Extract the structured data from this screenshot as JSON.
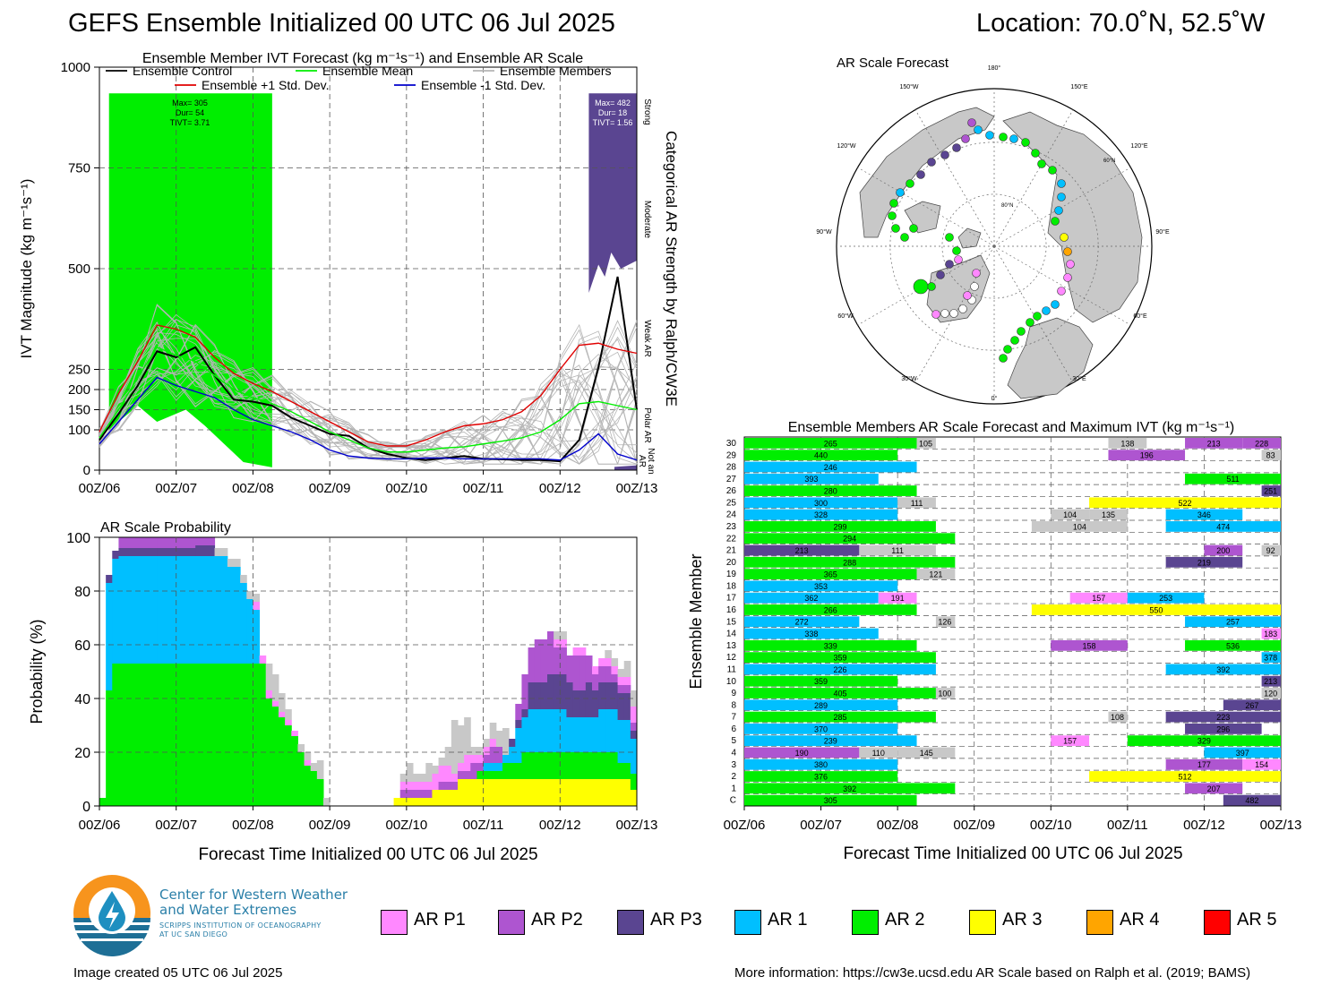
{
  "header": {
    "title": "GEFS Ensemble Initialized 00 UTC 06 Jul 2025",
    "location": "Location: 70.0˚N, 52.5˚W"
  },
  "colors": {
    "AR P1": "#ff88ff",
    "AR P2": "#ae55d0",
    "AR P3": "#5a4591",
    "AR 1": "#00bfff",
    "AR 2": "#00ee00",
    "AR 3": "#ffff00",
    "AR 4": "#ffa500",
    "AR 5": "#ff0000",
    "none": "#c8c8c8"
  },
  "time_ticks": [
    "00Z/06",
    "00Z/07",
    "00Z/08",
    "00Z/09",
    "00Z/10",
    "00Z/11",
    "00Z/12",
    "00Z/13"
  ],
  "chart_data": [
    {
      "type": "line",
      "title": "Ensemble Member IVT Forecast (kg m⁻¹s⁻¹) and Ensemble AR Scale",
      "ylabel": "IVT Magnitude (kg m⁻¹s⁻¹)",
      "ylim": [
        0,
        1000
      ],
      "yticks": [
        0,
        100,
        150,
        200,
        250,
        500,
        750,
        1000
      ],
      "xlim": [
        0,
        168
      ],
      "right_axis_title": "Categorical AR Strength by Ralph/CW3E",
      "right_labels": [
        "Strong",
        "Moderate",
        "Weak AR",
        "Polar AR",
        "Not an AR"
      ],
      "legend": [
        "Ensemble Control",
        "Ensemble Mean",
        "Ensemble Members",
        "Ensemble +1 Std. Dev.",
        "Ensemble -1 Std. Dev."
      ],
      "annotations": [
        {
          "lines": [
            "Max= 305",
            "Dur= 54",
            "TIVT= 3.71"
          ]
        },
        {
          "lines": [
            "Max= 482",
            "Dur= 18",
            "TIVT= 1.56"
          ]
        }
      ],
      "x_hours": [
        0,
        6,
        12,
        18,
        24,
        30,
        36,
        42,
        48,
        54,
        60,
        66,
        72,
        78,
        84,
        90,
        96,
        102,
        108,
        114,
        120,
        126,
        132,
        138,
        144,
        150,
        156,
        162,
        168
      ],
      "series": [
        {
          "name": "Ensemble Control",
          "values": [
            75,
            140,
            210,
            295,
            280,
            305,
            235,
            175,
            170,
            160,
            130,
            110,
            90,
            85,
            55,
            40,
            30,
            25,
            30,
            35,
            28,
            27,
            25,
            25,
            22,
            75,
            255,
            480,
            150
          ]
        },
        {
          "name": "Ensemble Mean",
          "values": [
            80,
            150,
            230,
            305,
            285,
            270,
            235,
            200,
            180,
            165,
            145,
            120,
            95,
            75,
            55,
            45,
            45,
            50,
            55,
            58,
            65,
            72,
            80,
            95,
            125,
            165,
            170,
            160,
            150
          ]
        },
        {
          "name": "Ensemble +1 Std. Dev.",
          "values": [
            95,
            190,
            270,
            360,
            350,
            330,
            280,
            240,
            215,
            195,
            170,
            145,
            120,
            95,
            70,
            60,
            60,
            75,
            95,
            110,
            115,
            125,
            145,
            185,
            250,
            310,
            315,
            300,
            290
          ]
        },
        {
          "name": "Ensemble -1 Std. Dev.",
          "values": [
            65,
            120,
            175,
            230,
            210,
            195,
            180,
            150,
            125,
            110,
            95,
            75,
            50,
            35,
            30,
            28,
            28,
            30,
            30,
            28,
            28,
            28,
            28,
            28,
            25,
            50,
            90,
            40,
            25
          ]
        }
      ]
    },
    {
      "type": "area",
      "title": "AR Scale Probability",
      "ylabel": "Probability (%)",
      "xlabel": "Forecast Time Initialized 00 UTC 06 Jul 2025",
      "ylim": [
        0,
        100
      ]
    },
    {
      "type": "bar",
      "title": "Ensemble Members AR Scale Forecast and Maximum IVT (kg m⁻¹s⁻¹)",
      "ylabel": "Ensemble Member",
      "xlabel": "Forecast Time Initialized 00 UTC 06 Jul 2025",
      "members": [
        "30",
        "29",
        "28",
        "27",
        "26",
        "25",
        "24",
        "23",
        "22",
        "21",
        "20",
        "19",
        "18",
        "17",
        "16",
        "15",
        "14",
        "13",
        "12",
        "11",
        "10",
        "9",
        "8",
        "7",
        "6",
        "5",
        "4",
        "3",
        "2",
        "1",
        "C"
      ],
      "events": [
        [
          "30",
          0,
          54,
          "AR 2",
          "265"
        ],
        [
          "30",
          54,
          60,
          "none",
          "105"
        ],
        [
          "30",
          114,
          126,
          "none",
          "138"
        ],
        [
          "30",
          138,
          156,
          "AR P2",
          "213"
        ],
        [
          "30",
          156,
          168,
          "AR P2",
          "228"
        ],
        [
          "29",
          0,
          48,
          "AR 2",
          "440"
        ],
        [
          "29",
          114,
          138,
          "AR P2",
          "196"
        ],
        [
          "29",
          162,
          168,
          "none",
          "83"
        ],
        [
          "28",
          0,
          54,
          "AR 1",
          "246"
        ],
        [
          "27",
          0,
          42,
          "AR 1",
          "393"
        ],
        [
          "27",
          138,
          168,
          "AR 2",
          "511"
        ],
        [
          "26",
          0,
          54,
          "AR 2",
          "280"
        ],
        [
          "26",
          162,
          168,
          "AR P3",
          "251"
        ],
        [
          "25",
          0,
          48,
          "AR 1",
          "300"
        ],
        [
          "25",
          48,
          60,
          "none",
          "111"
        ],
        [
          "25",
          108,
          168,
          "AR 3",
          "522"
        ],
        [
          "24",
          0,
          48,
          "AR 1",
          "328"
        ],
        [
          "24",
          96,
          108,
          "none",
          "104"
        ],
        [
          "24",
          108,
          120,
          "none",
          "135"
        ],
        [
          "24",
          132,
          156,
          "AR 1",
          "346"
        ],
        [
          "23",
          0,
          60,
          "AR 2",
          "299"
        ],
        [
          "23",
          90,
          120,
          "none",
          "104"
        ],
        [
          "23",
          132,
          168,
          "AR 1",
          "474"
        ],
        [
          "22",
          0,
          66,
          "AR 2",
          "294"
        ],
        [
          "21",
          0,
          36,
          "AR P3",
          "213"
        ],
        [
          "21",
          36,
          60,
          "none",
          "111"
        ],
        [
          "21",
          144,
          156,
          "AR P2",
          "200"
        ],
        [
          "21",
          162,
          168,
          "none",
          "92"
        ],
        [
          "20",
          0,
          66,
          "AR 2",
          "288"
        ],
        [
          "20",
          132,
          156,
          "AR P3",
          "219"
        ],
        [
          "19",
          0,
          54,
          "AR 2",
          "365"
        ],
        [
          "19",
          54,
          66,
          "none",
          "121"
        ],
        [
          "18",
          0,
          48,
          "AR 1",
          "353"
        ],
        [
          "17",
          0,
          42,
          "AR 1",
          "362"
        ],
        [
          "17",
          42,
          54,
          "AR P1",
          "191"
        ],
        [
          "17",
          102,
          120,
          "AR P1",
          "157"
        ],
        [
          "17",
          120,
          144,
          "AR 1",
          "253"
        ],
        [
          "16",
          0,
          54,
          "AR 2",
          "266"
        ],
        [
          "16",
          90,
          168,
          "AR 3",
          "550"
        ],
        [
          "15",
          0,
          36,
          "AR 1",
          "272"
        ],
        [
          "15",
          60,
          66,
          "none",
          "126"
        ],
        [
          "15",
          138,
          168,
          "AR 1",
          "257"
        ],
        [
          "14",
          0,
          42,
          "AR 1",
          "338"
        ],
        [
          "14",
          162,
          168,
          "AR P1",
          "183"
        ],
        [
          "13",
          0,
          54,
          "AR 2",
          "339"
        ],
        [
          "13",
          96,
          120,
          "AR P2",
          "158"
        ],
        [
          "13",
          138,
          168,
          "AR 2",
          "536"
        ],
        [
          "12",
          0,
          60,
          "AR 2",
          "359"
        ],
        [
          "12",
          162,
          168,
          "AR 1",
          "378"
        ],
        [
          "11",
          0,
          60,
          "AR 1",
          "226"
        ],
        [
          "11",
          132,
          168,
          "AR 1",
          "392"
        ],
        [
          "10",
          0,
          48,
          "AR 2",
          "359"
        ],
        [
          "10",
          162,
          168,
          "AR P3",
          "213"
        ],
        [
          "9",
          0,
          60,
          "AR 2",
          "405"
        ],
        [
          "9",
          60,
          66,
          "none",
          "100"
        ],
        [
          "9",
          162,
          168,
          "none",
          "120"
        ],
        [
          "8",
          0,
          48,
          "AR 1",
          "289"
        ],
        [
          "8",
          150,
          168,
          "AR P3",
          "267"
        ],
        [
          "7",
          0,
          60,
          "AR 2",
          "285"
        ],
        [
          "7",
          114,
          120,
          "none",
          "108"
        ],
        [
          "7",
          132,
          168,
          "AR P3",
          "223"
        ],
        [
          "6",
          0,
          48,
          "AR 1",
          "370"
        ],
        [
          "6",
          138,
          162,
          "AR P3",
          "296"
        ],
        [
          "5",
          0,
          54,
          "AR 1",
          "239"
        ],
        [
          "5",
          96,
          108,
          "AR P1",
          "157"
        ],
        [
          "5",
          120,
          168,
          "AR 2",
          "329"
        ],
        [
          "4",
          0,
          36,
          "AR P2",
          "190"
        ],
        [
          "4",
          36,
          48,
          "none",
          "110"
        ],
        [
          "4",
          48,
          66,
          "none",
          "145"
        ],
        [
          "4",
          144,
          168,
          "AR 1",
          "397"
        ],
        [
          "3",
          0,
          48,
          "AR 1",
          "380"
        ],
        [
          "3",
          132,
          156,
          "AR P2",
          "177"
        ],
        [
          "3",
          156,
          168,
          "AR P1",
          "154"
        ],
        [
          "2",
          0,
          48,
          "AR 2",
          "376"
        ],
        [
          "2",
          108,
          168,
          "AR 3",
          "512"
        ],
        [
          "1",
          0,
          66,
          "AR 2",
          "392"
        ],
        [
          "1",
          138,
          156,
          "AR P2",
          "207"
        ],
        [
          "C",
          0,
          54,
          "AR 2",
          "305"
        ],
        [
          "C",
          150,
          168,
          "AR P3",
          "482"
        ]
      ]
    }
  ],
  "map": {
    "title": "AR Scale Forecast",
    "labels": [
      "180°",
      "150°E",
      "120°E",
      "90°E",
      "60°E",
      "30°E",
      "0°",
      "30°W",
      "60°W",
      "90°W",
      "120°W",
      "150°W",
      "80°N",
      "60°N"
    ]
  },
  "legend": {
    "items": [
      "AR P1",
      "AR P2",
      "AR P3",
      "AR 1",
      "AR 2",
      "AR 3",
      "AR 4",
      "AR 5"
    ]
  },
  "logo": {
    "line1": "Center for Western Weather",
    "line2": "and Water Extremes",
    "line3": "SCRIPPS INSTITUTION OF OCEANOGRAPHY",
    "line4": "AT UC SAN DIEGO"
  },
  "footer": {
    "created": "Image created 05 UTC 06 Jul 2025",
    "info": "More information: https://cw3e.ucsd.edu AR Scale based on Ralph et al. (2019; BAMS)"
  }
}
